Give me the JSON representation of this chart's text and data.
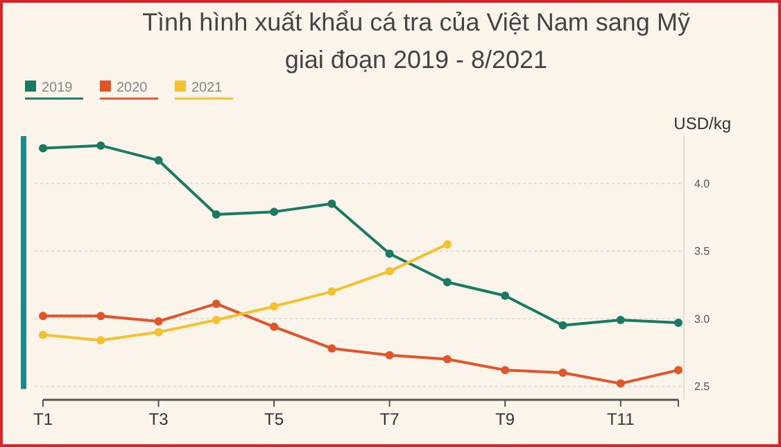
{
  "chart_data": {
    "type": "line",
    "title": "Tình hình xuất khẩu cá tra của Việt Nam sang Mỹ giai đoạn 2019 - 8/2021",
    "ylabel": "USD/kg",
    "categories": [
      "T1",
      null,
      "T3",
      null,
      "T5",
      null,
      "T7",
      null,
      "T9",
      null,
      "T11",
      null
    ],
    "series": [
      {
        "name": "2019",
        "color": "#1a7a63",
        "values": [
          4.26,
          4.28,
          4.17,
          3.77,
          3.79,
          3.85,
          3.48,
          3.27,
          3.17,
          2.95,
          2.99,
          2.97
        ]
      },
      {
        "name": "2020",
        "color": "#e0552a",
        "values": [
          3.02,
          3.02,
          2.98,
          3.11,
          2.94,
          2.78,
          2.73,
          2.7,
          2.62,
          2.6,
          2.52,
          2.62
        ]
      },
      {
        "name": "2021",
        "color": "#f2c230",
        "values": [
          2.88,
          2.84,
          2.9,
          2.99,
          3.09,
          3.2,
          3.35,
          3.55,
          null,
          null,
          null,
          null
        ]
      }
    ],
    "ylim": [
      2.4,
      4.35
    ],
    "yticks": [
      {
        "value": 2.5,
        "label": "2.5"
      },
      {
        "value": 3,
        "label": "3.0"
      },
      {
        "value": 3.5,
        "label": "3.5"
      },
      {
        "value": 4,
        "label": "4.0"
      }
    ],
    "grid": "y",
    "legend": "top left",
    "marker": "circle",
    "line_style": "solid"
  }
}
